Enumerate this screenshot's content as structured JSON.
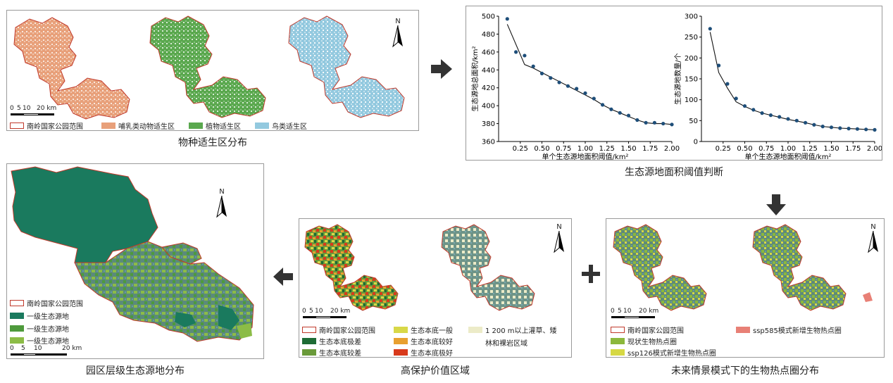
{
  "panels": {
    "species": {
      "caption": "物种适生区分布",
      "legend": [
        "南岭国家公园范围",
        "哺乳类动物适生区",
        "植物适生区",
        "鸟类适生区"
      ],
      "scale": {
        "ticks": [
          "0",
          "5",
          "10",
          "20 km"
        ]
      },
      "north": "N"
    },
    "threshold": {
      "caption": "生态源地面积阈值判断"
    },
    "future": {
      "caption": "未来情景模式下的生物热点圈分布",
      "legend": [
        "南岭国家公园范围",
        "ssp585模式新增生物热点圈",
        "现状生物热点圈",
        "ssp126模式新增生物热点圈"
      ],
      "scale": {
        "ticks": [
          "0",
          "5",
          "10",
          "20 km"
        ]
      },
      "north": "N"
    },
    "protect": {
      "caption": "高保护价值区域",
      "legend": [
        "南岭国家公园范围",
        "生态本底一般",
        "1 200 m以上灌草、矮",
        "林和裸岩区域",
        "生态本底极差",
        "生态本底较好",
        "生态本底较差",
        "生态本底极好"
      ],
      "scale": {
        "ticks": [
          "0",
          "5",
          "10",
          "20 km"
        ]
      },
      "north": "N"
    },
    "park": {
      "caption": "园区层级生态源地分布",
      "legend": [
        "南岭国家公园范围",
        "一级生态源地",
        "一级生态源地",
        "一级生态源地"
      ],
      "scale": {
        "ticks": [
          "0",
          "5",
          "10",
          "20 km"
        ]
      },
      "north": "N"
    }
  },
  "colors": {
    "boundary": "#c0392b",
    "mammal": "#e8a07a",
    "plant": "#5aa84e",
    "bird": "#93c9df",
    "eco_bad_extreme": "#1e6b35",
    "eco_bad": "#6a9a3a",
    "eco_normal": "#d8d848",
    "eco_good": "#e8a030",
    "eco_good_extreme": "#d83a1c",
    "shrub": "#ecebc8",
    "current_hotspot": "#8cb83c",
    "ssp126": "#d6d844",
    "ssp585": "#e88076",
    "lvl_dark": "#1a7a5e",
    "lvl_mid": "#4e9a3c",
    "lvl_light": "#8cbc46"
  },
  "chart_data": [
    {
      "type": "line",
      "xlabel": "单个生态源地面积阈值/km²",
      "ylabel": "生态源地总面积/km²",
      "ylim": [
        360,
        500
      ],
      "xlim": [
        0,
        2.0
      ],
      "xticks": [
        "0.25",
        "0.50",
        "0.75",
        "1.00",
        "1.25",
        "1.50",
        "1.75",
        "2.00"
      ],
      "yticks": [
        "360",
        "380",
        "400",
        "420",
        "440",
        "460",
        "480",
        "500"
      ],
      "points": {
        "x": [
          0.1,
          0.2,
          0.3,
          0.4,
          0.5,
          0.6,
          0.7,
          0.8,
          0.9,
          1.0,
          1.1,
          1.2,
          1.3,
          1.4,
          1.5,
          1.6,
          1.7,
          1.8,
          1.9,
          2.0
        ],
        "y": [
          497,
          460,
          456,
          444,
          436,
          431,
          426,
          422,
          419,
          414,
          408,
          401,
          396,
          392,
          389,
          384,
          381,
          381,
          380,
          379
        ]
      },
      "line": {
        "x": [
          0.1,
          0.3,
          0.4,
          0.5,
          0.6,
          0.7,
          0.8,
          0.9,
          1.0,
          1.1,
          1.2,
          1.3,
          1.4,
          1.5,
          1.6,
          1.7,
          1.8,
          1.9,
          2.0
        ],
        "y": [
          491,
          446,
          442,
          437,
          432,
          427,
          422,
          417,
          412,
          407,
          401,
          396,
          392,
          388,
          384,
          381,
          380,
          380,
          379
        ]
      }
    },
    {
      "type": "line",
      "xlabel": "单个生态源地面积阈值/km²",
      "ylabel": "生态源地数量/个",
      "ylim": [
        0,
        300
      ],
      "xlim": [
        0,
        2.0
      ],
      "xticks": [
        "0.25",
        "0.50",
        "0.75",
        "1.00",
        "1.25",
        "1.50",
        "1.75",
        "2.00"
      ],
      "yticks": [
        "0",
        "50",
        "100",
        "150",
        "200",
        "250",
        "300"
      ],
      "points": {
        "x": [
          0.1,
          0.2,
          0.3,
          0.4,
          0.5,
          0.6,
          0.7,
          0.8,
          0.9,
          1.0,
          1.1,
          1.2,
          1.3,
          1.4,
          1.5,
          1.6,
          1.7,
          1.8,
          1.9,
          2.0
        ],
        "y": [
          270,
          182,
          138,
          103,
          85,
          76,
          68,
          63,
          59,
          54,
          50,
          45,
          40,
          36,
          34,
          32,
          31,
          30,
          29,
          28
        ]
      },
      "line": {
        "x": [
          0.1,
          0.2,
          0.3,
          0.4,
          0.5,
          0.6,
          0.7,
          0.8,
          0.9,
          1.0,
          1.1,
          1.2,
          1.3,
          1.4,
          1.5,
          1.6,
          1.7,
          1.8,
          1.9,
          2.0
        ],
        "y": [
          262,
          165,
          128,
          95,
          84,
          75,
          68,
          63,
          58,
          53,
          49,
          45,
          40,
          36,
          34,
          32,
          31,
          30,
          29,
          28
        ]
      }
    }
  ]
}
